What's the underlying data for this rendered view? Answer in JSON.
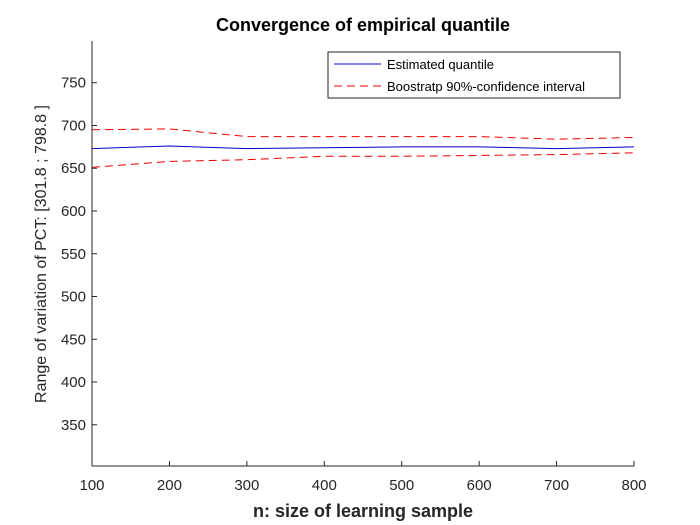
{
  "chart_data": {
    "type": "line",
    "title": "Convergence of empirical quantile",
    "xlabel": "n: size of learning sample",
    "ylabel": "Range of variation of PCT: [301.8 ; 798.8 ]",
    "xlim": [
      100,
      800
    ],
    "ylim": [
      301.8,
      798.8
    ],
    "xticks": [
      100,
      200,
      300,
      400,
      500,
      600,
      700,
      800
    ],
    "yticks": [
      350,
      400,
      450,
      500,
      550,
      600,
      650,
      700,
      750
    ],
    "x": [
      100,
      200,
      300,
      400,
      500,
      600,
      700,
      800
    ],
    "series": [
      {
        "name": "Estimated quantile",
        "values": [
          673,
          676,
          673,
          674,
          675,
          675,
          673,
          675
        ],
        "color": "#0000cc",
        "style": "solid"
      },
      {
        "name": "Boostratp 90%-confidence interval",
        "values": [
          695,
          696,
          687,
          687,
          687,
          687,
          684,
          686
        ],
        "color": "#ee0000",
        "style": "dashed"
      },
      {
        "values": [
          651,
          658,
          660,
          664,
          664,
          665,
          666,
          668
        ],
        "color": "#ee0000",
        "style": "dashed"
      }
    ],
    "legend": {
      "placement": "top-right",
      "entries": [
        {
          "label": "Estimated quantile",
          "color": "#0000cc",
          "style": "solid"
        },
        {
          "label": "Boostratp 90%-confidence interval",
          "color": "#ee0000",
          "style": "dashed"
        }
      ]
    },
    "grid": false
  }
}
